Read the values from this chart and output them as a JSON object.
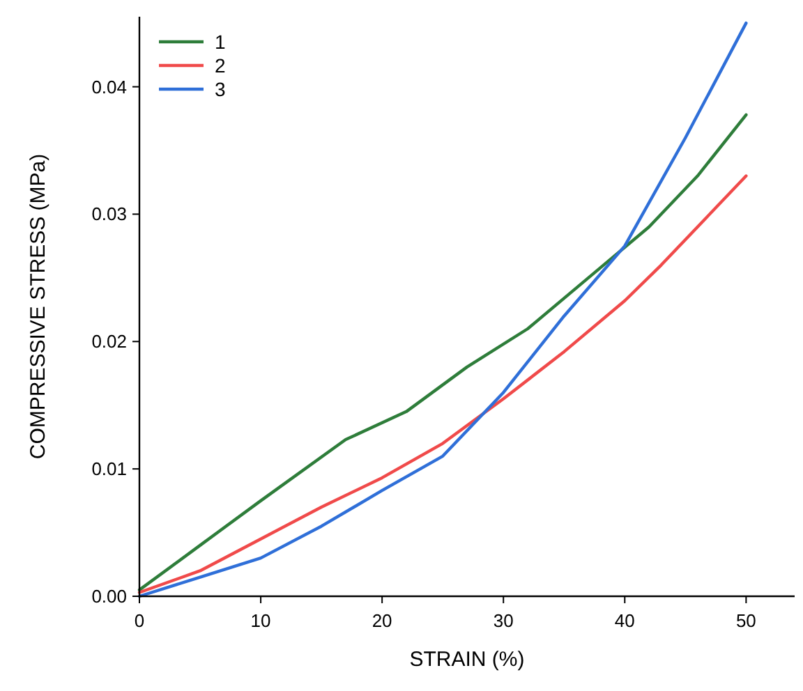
{
  "chart_data": {
    "type": "line",
    "xlabel": "STRAIN (%)",
    "ylabel": "COMPRESSIVE STRESS (MPa)",
    "xlim": [
      0,
      54
    ],
    "ylim": [
      0,
      0.0455
    ],
    "xticks": [
      0,
      10,
      20,
      30,
      40,
      50
    ],
    "yticks": [
      {
        "value": 0,
        "label": "0.00"
      },
      {
        "value": 0.01,
        "label": "0.01"
      },
      {
        "value": 0.02,
        "label": "0.02"
      },
      {
        "value": 0.03,
        "label": "0.03"
      },
      {
        "value": 0.04,
        "label": "0.04"
      }
    ],
    "legend": "top left",
    "grid": false,
    "marker": "none",
    "line_style": "solid",
    "series": [
      {
        "name": "1",
        "color": "#2e7d3a",
        "x": [
          0,
          5,
          10,
          17,
          22,
          27,
          32,
          37,
          42,
          46,
          50
        ],
        "values": [
          0.0005,
          0.004,
          0.0075,
          0.0123,
          0.0145,
          0.018,
          0.021,
          0.025,
          0.029,
          0.033,
          0.0378
        ]
      },
      {
        "name": "2",
        "color": "#f04a4a",
        "x": [
          0,
          5,
          10,
          15,
          20,
          25,
          30,
          35,
          40,
          43,
          46,
          50
        ],
        "values": [
          0.0003,
          0.002,
          0.0045,
          0.007,
          0.0093,
          0.012,
          0.0155,
          0.0192,
          0.0232,
          0.026,
          0.029,
          0.033
        ]
      },
      {
        "name": "3",
        "color": "#2f6fd8",
        "x": [
          0,
          5,
          10,
          15,
          20,
          25,
          30,
          35,
          40,
          45,
          50
        ],
        "values": [
          0,
          0.0015,
          0.003,
          0.0055,
          0.0083,
          0.011,
          0.016,
          0.022,
          0.0275,
          0.036,
          0.045
        ]
      }
    ]
  }
}
